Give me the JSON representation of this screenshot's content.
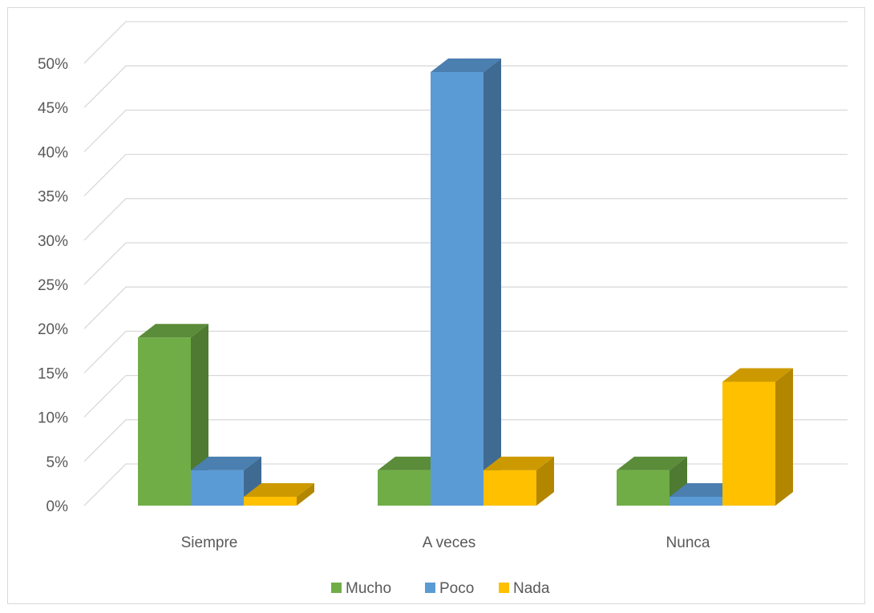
{
  "chart_data": {
    "type": "bar",
    "style": "3d-clustered-column",
    "categories": [
      "Siempre",
      "A veces",
      "Nunca"
    ],
    "series": [
      {
        "name": "Mucho",
        "values": [
          19,
          4,
          4
        ],
        "color": "#70ad47",
        "side_color": "#4e7a31",
        "top_color": "#5a8c39"
      },
      {
        "name": "Poco",
        "values": [
          4,
          49,
          1
        ],
        "color": "#5b9bd5",
        "side_color": "#3f6b93",
        "top_color": "#4a7fb0"
      },
      {
        "name": "Nada",
        "values": [
          1,
          4,
          14
        ],
        "color": "#ffc000",
        "side_color": "#b38600",
        "top_color": "#cc9a00"
      }
    ],
    "y_ticks": [
      "0%",
      "5%",
      "10%",
      "15%",
      "20%",
      "25%",
      "30%",
      "35%",
      "40%",
      "45%",
      "50%"
    ],
    "ylim": [
      0,
      50
    ],
    "y_unit": "%",
    "grid": true,
    "legend_position": "bottom",
    "title": "",
    "xlabel": "",
    "ylabel": ""
  }
}
